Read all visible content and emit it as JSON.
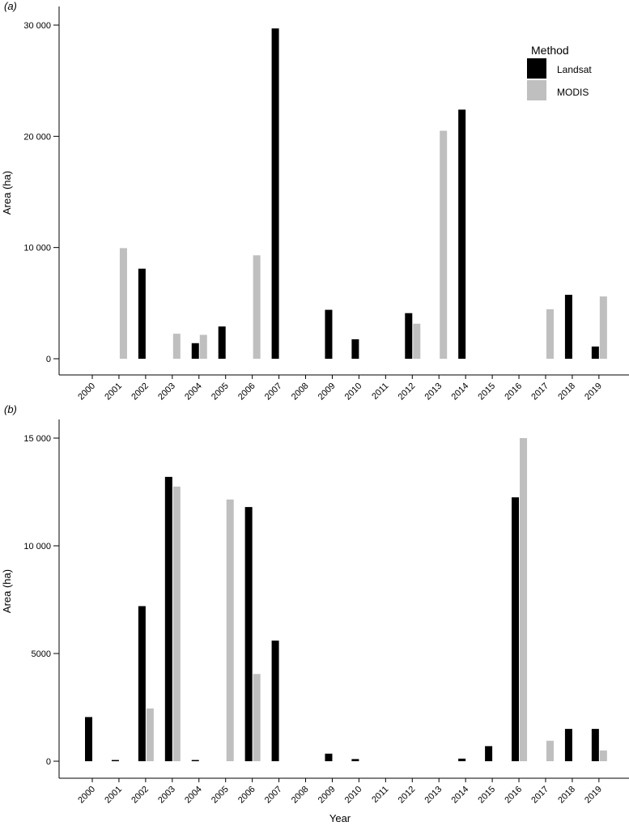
{
  "legend": {
    "title": "Method",
    "items": [
      {
        "label": "Landsat",
        "color": "#000000"
      },
      {
        "label": "MODIS",
        "color": "#bfbfbf"
      }
    ]
  },
  "xlabel": "Year",
  "chart_data": [
    {
      "type": "bar",
      "title": "(a)",
      "ylabel": "Area (ha)",
      "xlabel": "",
      "ylim": [
        0,
        30000
      ],
      "yticks": [
        0,
        10000,
        20000,
        30000
      ],
      "ytick_labels": [
        "0",
        "10 000",
        "20 000",
        "30 000"
      ],
      "categories": [
        "2000",
        "2001",
        "2002",
        "2003",
        "2004",
        "2005",
        "2006",
        "2007",
        "2008",
        "2009",
        "2010",
        "2011",
        "2012",
        "2013",
        "2014",
        "2015",
        "2016",
        "2017",
        "2018",
        "2019"
      ],
      "series": [
        {
          "name": "Landsat",
          "color": "#000000",
          "values": [
            0,
            0,
            8100,
            0,
            1400,
            2900,
            0,
            29700,
            0,
            4400,
            1750,
            0,
            4100,
            0,
            22400,
            0,
            0,
            0,
            5750,
            1100
          ]
        },
        {
          "name": "MODIS",
          "color": "#bfbfbf",
          "values": [
            0,
            9950,
            0,
            2250,
            2150,
            0,
            9300,
            0,
            0,
            0,
            0,
            0,
            3150,
            20500,
            0,
            0,
            0,
            4450,
            0,
            5600
          ]
        }
      ],
      "legend": "top-right",
      "grid": false
    },
    {
      "type": "bar",
      "title": "(b)",
      "ylabel": "Area (ha)",
      "xlabel": "Year",
      "ylim": [
        0,
        15000
      ],
      "yticks": [
        0,
        5000,
        10000,
        15000
      ],
      "ytick_labels": [
        "0",
        "5000",
        "10 000",
        "15 000"
      ],
      "categories": [
        "2000",
        "2001",
        "2002",
        "2003",
        "2004",
        "2005",
        "2006",
        "2007",
        "2008",
        "2009",
        "2010",
        "2011",
        "2012",
        "2013",
        "2014",
        "2015",
        "2016",
        "2017",
        "2018",
        "2019"
      ],
      "series": [
        {
          "name": "Landsat",
          "color": "#000000",
          "values": [
            2050,
            50,
            7200,
            13200,
            50,
            0,
            11800,
            5600,
            0,
            350,
            100,
            0,
            0,
            0,
            120,
            700,
            12250,
            0,
            1500,
            1500
          ]
        },
        {
          "name": "MODIS",
          "color": "#bfbfbf",
          "values": [
            0,
            0,
            2450,
            12750,
            0,
            12150,
            4050,
            0,
            0,
            0,
            0,
            0,
            0,
            0,
            0,
            0,
            15000,
            950,
            0,
            500
          ]
        }
      ],
      "legend": "none",
      "grid": false
    }
  ]
}
